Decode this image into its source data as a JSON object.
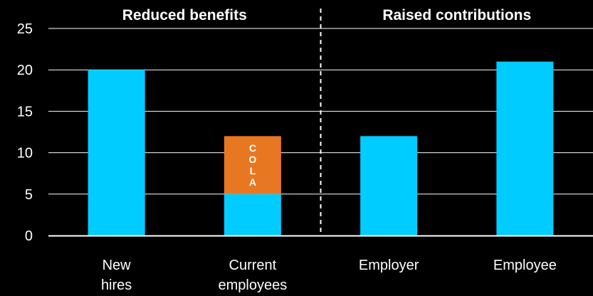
{
  "chart_data": {
    "type": "bar",
    "stacked": true,
    "categories": [
      "New hires",
      "Current employees",
      "Employer",
      "Employee"
    ],
    "series": [
      {
        "values": [
          20,
          5,
          12,
          21
        ],
        "color": "#00CCFF"
      },
      {
        "name": "COLA",
        "values": [
          0,
          7,
          0,
          0
        ],
        "color": "#E87722"
      }
    ],
    "ylim": [
      0,
      25
    ],
    "yticks": [
      0,
      5,
      10,
      15,
      20,
      25
    ],
    "grid": true,
    "sections": [
      {
        "label": "Reduced benefits",
        "categories": [
          "New hires",
          "Current employees"
        ]
      },
      {
        "label": "Raised contributions",
        "categories": [
          "Employer",
          "Employee"
        ]
      }
    ]
  }
}
